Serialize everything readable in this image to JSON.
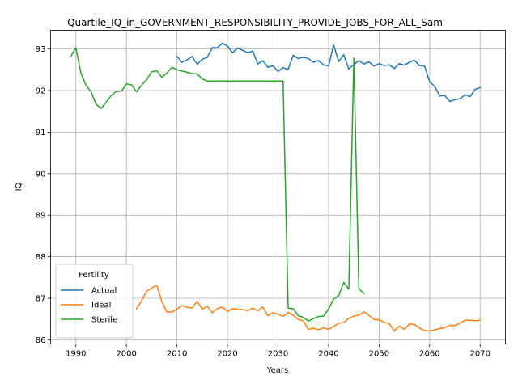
{
  "chart_data": {
    "type": "line",
    "title": "Quartile_IQ_in_GOVERNMENT_RESPONSIBILITY_PROVIDE_JOBS_FOR_ALL_Sam",
    "xlabel": "Years",
    "ylabel": "IQ",
    "xlim": [
      1985,
      2075
    ],
    "ylim": [
      85.9,
      93.45
    ],
    "xticks": [
      1990,
      2000,
      2010,
      2020,
      2030,
      2040,
      2050,
      2060,
      2070
    ],
    "yticks": [
      86,
      87,
      88,
      89,
      90,
      91,
      92,
      93
    ],
    "grid": true,
    "legend": {
      "title": "Fertility",
      "placement": "lower-left"
    },
    "series": [
      {
        "name": "Actual",
        "color": "#1f77b4",
        "x": [
          2010,
          2011,
          2012,
          2013,
          2014,
          2015,
          2016,
          2017,
          2018,
          2019,
          2020,
          2021,
          2022,
          2023,
          2024,
          2025,
          2026,
          2027,
          2028,
          2029,
          2030,
          2031,
          2032,
          2033,
          2034,
          2035,
          2036,
          2037,
          2038,
          2039,
          2040,
          2041,
          2042,
          2043,
          2044,
          2045,
          2046,
          2047,
          2048,
          2049,
          2050,
          2051,
          2052,
          2053,
          2054,
          2055,
          2056,
          2057,
          2058,
          2059,
          2060,
          2061,
          2062,
          2063,
          2064,
          2065,
          2066,
          2067,
          2068,
          2069,
          2070
        ],
        "y": [
          92.82,
          92.68,
          92.74,
          92.82,
          92.63,
          92.75,
          92.8,
          93.03,
          93.03,
          93.14,
          93.07,
          92.91,
          93.02,
          92.97,
          92.91,
          92.95,
          92.64,
          92.72,
          92.56,
          92.6,
          92.46,
          92.55,
          92.51,
          92.85,
          92.77,
          92.8,
          92.77,
          92.68,
          92.72,
          92.62,
          92.59,
          93.1,
          92.7,
          92.86,
          92.52,
          92.63,
          92.72,
          92.64,
          92.69,
          92.59,
          92.65,
          92.6,
          92.62,
          92.53,
          92.65,
          92.61,
          92.68,
          92.73,
          92.6,
          92.59,
          92.21,
          92.1,
          91.87,
          91.88,
          91.74,
          91.78,
          91.8,
          91.9,
          91.85,
          92.03,
          92.07
        ]
      },
      {
        "name": "Ideal",
        "color": "#ff7f0e",
        "x": [
          2002,
          2003,
          2004,
          2005,
          2006,
          2007,
          2008,
          2009,
          2010,
          2011,
          2012,
          2013,
          2014,
          2015,
          2016,
          2017,
          2018,
          2019,
          2020,
          2021,
          2022,
          2023,
          2024,
          2025,
          2026,
          2027,
          2028,
          2029,
          2030,
          2031,
          2032,
          2033,
          2034,
          2035,
          2036,
          2037,
          2038,
          2039,
          2040,
          2041,
          2042,
          2043,
          2044,
          2045,
          2046,
          2047,
          2048,
          2049,
          2050,
          2051,
          2052,
          2053,
          2054,
          2055,
          2056,
          2057,
          2058,
          2059,
          2060,
          2061,
          2062,
          2063,
          2064,
          2065,
          2066,
          2067,
          2068,
          2069,
          2070
        ],
        "y": [
          86.74,
          86.94,
          87.17,
          87.24,
          87.32,
          86.93,
          86.67,
          86.67,
          86.74,
          86.82,
          86.78,
          86.77,
          86.93,
          86.74,
          86.81,
          86.65,
          86.75,
          86.79,
          86.68,
          86.75,
          86.73,
          86.73,
          86.7,
          86.76,
          86.7,
          86.79,
          86.58,
          86.65,
          86.62,
          86.56,
          86.66,
          86.59,
          86.49,
          86.46,
          86.25,
          86.28,
          86.24,
          86.29,
          86.25,
          86.32,
          86.4,
          86.41,
          86.52,
          86.57,
          86.59,
          86.67,
          86.59,
          86.49,
          86.48,
          86.42,
          86.39,
          86.21,
          86.33,
          86.25,
          86.38,
          86.37,
          86.28,
          86.22,
          86.21,
          86.24,
          86.27,
          86.29,
          86.35,
          86.34,
          86.4,
          86.47,
          86.47,
          86.46,
          86.47
        ]
      },
      {
        "name": "Sterile",
        "color": "#2ca02c",
        "x": [
          1989,
          1990,
          1991,
          1992,
          1993,
          1994,
          1995,
          1996,
          1997,
          1998,
          1999,
          2000,
          2001,
          2002,
          2003,
          2004,
          2005,
          2006,
          2007,
          2008,
          2009,
          2010,
          2011,
          2012,
          2013,
          2014,
          2015,
          2016,
          2017,
          2018,
          2019,
          2020,
          2021,
          2022,
          2023,
          2024,
          2025,
          2026,
          2027,
          2028,
          2029,
          2030,
          2031,
          2032,
          2033,
          2034,
          2035,
          2036,
          2037,
          2038,
          2039,
          2040,
          2041,
          2042,
          2043,
          2044,
          2045,
          2046,
          2047
        ],
        "y": [
          92.82,
          93.03,
          92.42,
          92.13,
          91.97,
          91.67,
          91.57,
          91.72,
          91.88,
          91.98,
          91.98,
          92.16,
          92.14,
          91.97,
          92.13,
          92.26,
          92.45,
          92.48,
          92.32,
          92.42,
          92.56,
          92.5,
          92.47,
          92.44,
          92.41,
          92.4,
          92.28,
          92.23,
          92.23,
          92.23,
          92.23,
          92.23,
          92.23,
          92.23,
          92.23,
          92.23,
          92.23,
          92.23,
          92.23,
          92.23,
          92.23,
          92.23,
          92.23,
          86.76,
          86.75,
          86.58,
          86.54,
          86.45,
          86.51,
          86.56,
          86.57,
          86.74,
          86.98,
          87.06,
          87.38,
          87.22,
          92.78,
          87.23,
          87.11
        ]
      }
    ]
  }
}
